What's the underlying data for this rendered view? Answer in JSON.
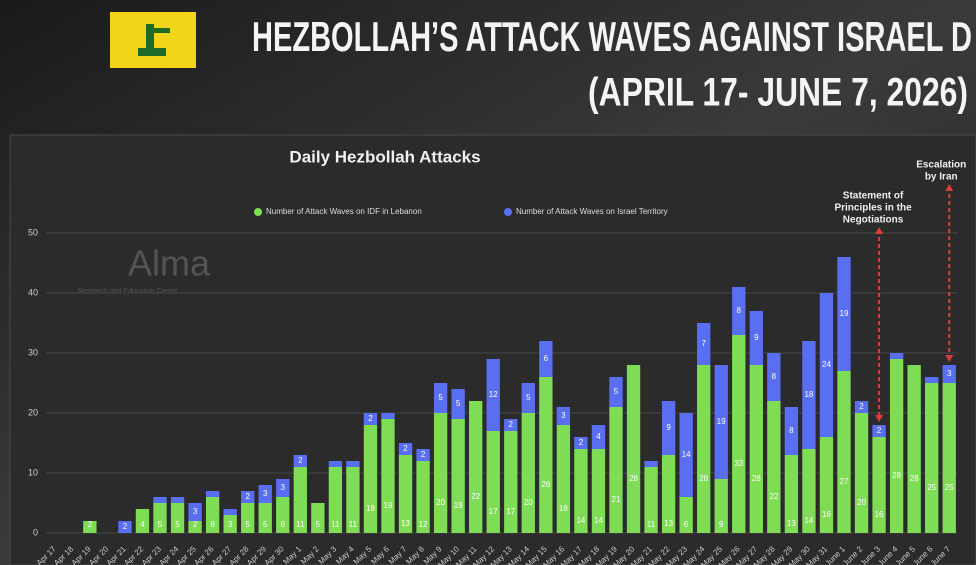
{
  "header": {
    "title": "HEZBOLLAH’S ATTACK WAVES AGAINST ISRAEL D",
    "subtitle": "(APRIL 17- JUNE 7, 2026)"
  },
  "watermark": {
    "name": "Alma",
    "tagline": "Research and Education Center"
  },
  "chart_data": {
    "type": "stacked-bar",
    "title": "Daily Hezbollah Attacks",
    "categories": [
      "Apr 17",
      "Apr 18",
      "Apr 19",
      "Apr 20",
      "Apr 21",
      "Apr 22",
      "Apr 23",
      "Apr 24",
      "Apr 25",
      "Apr 26",
      "Apr 27",
      "Apr 28",
      "Apr 29",
      "Apr 30",
      "May 1",
      "May 2",
      "May 3",
      "May 4",
      "May 5",
      "May 6",
      "May 7",
      "May 8",
      "May 9",
      "May 10",
      "May 11",
      "May 12",
      "May 13",
      "May 14",
      "May 15",
      "May 16",
      "May 17",
      "May 18",
      "May 19",
      "May 20",
      "May 21",
      "May 22",
      "May 23",
      "May 24",
      "May 25",
      "May 26",
      "May 27",
      "May 28",
      "May 29",
      "May 30",
      "May 31",
      "June 1",
      "June 2",
      "June 3",
      "June 4",
      "June 5",
      "June 6",
      "June 7"
    ],
    "series": [
      {
        "name": "Number of Attack Waves on IDF in Lebanon",
        "color": "#7fdc55",
        "values": [
          0,
          0,
          2,
          0,
          0,
          4,
          5,
          5,
          2,
          6,
          3,
          5,
          5,
          6,
          11,
          5,
          11,
          11,
          18,
          19,
          13,
          12,
          20,
          19,
          22,
          17,
          17,
          20,
          26,
          18,
          14,
          14,
          21,
          28,
          11,
          13,
          6,
          28,
          9,
          33,
          28,
          22,
          13,
          14,
          16,
          27,
          20,
          16,
          29,
          28,
          25,
          25
        ]
      },
      {
        "name": "Number of Attack Waves on Israel Territory",
        "color": "#5a6ef2",
        "values": [
          0,
          0,
          0,
          0,
          2,
          0,
          1,
          1,
          3,
          1,
          1,
          2,
          3,
          3,
          2,
          0,
          1,
          1,
          2,
          1,
          2,
          2,
          5,
          5,
          0,
          12,
          2,
          5,
          6,
          3,
          2,
          4,
          5,
          0,
          1,
          9,
          14,
          7,
          19,
          8,
          9,
          8,
          8,
          18,
          24,
          19,
          2,
          2,
          1,
          0,
          1,
          3
        ]
      }
    ],
    "ylim": [
      0,
      50
    ],
    "yticks": [
      0,
      10,
      20,
      30,
      40,
      50
    ],
    "grid": true,
    "annotations": [
      {
        "lines": [
          "Statement of",
          "Principles in the",
          "Negotiations"
        ],
        "category": "June 3",
        "color": "#e03a3a"
      },
      {
        "lines": [
          "Escalation",
          "by Iran"
        ],
        "category": "June 7",
        "color": "#e03a3a"
      }
    ]
  }
}
